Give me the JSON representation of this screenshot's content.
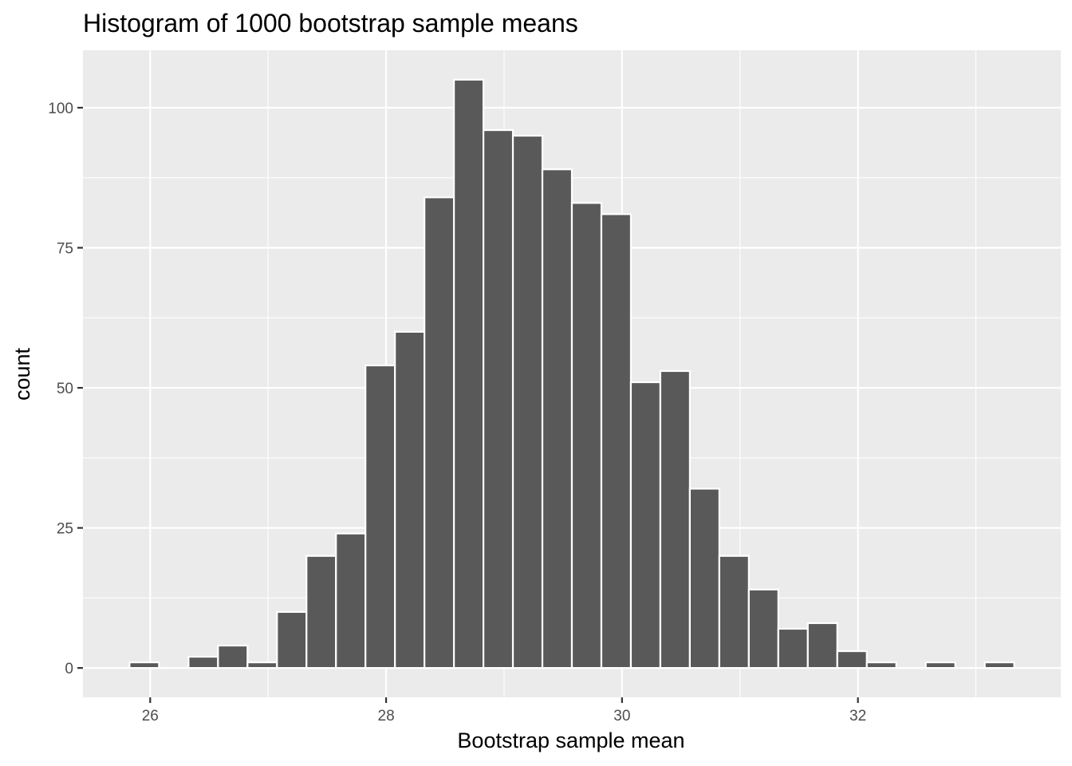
{
  "chart_data": {
    "type": "bar",
    "subtype": "histogram",
    "title": "Histogram of 1000 bootstrap sample means",
    "xlabel": "Bootstrap sample mean",
    "ylabel": "count",
    "bin_width": 0.25,
    "bins": [
      {
        "center": 25.95,
        "count": 1
      },
      {
        "center": 26.2,
        "count": 0
      },
      {
        "center": 26.45,
        "count": 2
      },
      {
        "center": 26.7,
        "count": 4
      },
      {
        "center": 26.95,
        "count": 1
      },
      {
        "center": 27.2,
        "count": 10
      },
      {
        "center": 27.45,
        "count": 20
      },
      {
        "center": 27.7,
        "count": 24
      },
      {
        "center": 27.95,
        "count": 54
      },
      {
        "center": 28.2,
        "count": 60
      },
      {
        "center": 28.45,
        "count": 84
      },
      {
        "center": 28.7,
        "count": 105
      },
      {
        "center": 28.95,
        "count": 96
      },
      {
        "center": 29.2,
        "count": 95
      },
      {
        "center": 29.45,
        "count": 89
      },
      {
        "center": 29.7,
        "count": 83
      },
      {
        "center": 29.95,
        "count": 81
      },
      {
        "center": 30.2,
        "count": 51
      },
      {
        "center": 30.45,
        "count": 53
      },
      {
        "center": 30.7,
        "count": 32
      },
      {
        "center": 30.95,
        "count": 20
      },
      {
        "center": 31.2,
        "count": 14
      },
      {
        "center": 31.45,
        "count": 7
      },
      {
        "center": 31.7,
        "count": 8
      },
      {
        "center": 31.95,
        "count": 3
      },
      {
        "center": 32.2,
        "count": 1
      },
      {
        "center": 32.45,
        "count": 0
      },
      {
        "center": 32.7,
        "count": 1
      },
      {
        "center": 32.95,
        "count": 0
      },
      {
        "center": 33.2,
        "count": 1
      }
    ],
    "xlim": [
      25.43,
      33.72
    ],
    "ylim": [
      -5.25,
      110.25
    ],
    "x_ticks": [
      26,
      28,
      30,
      32
    ],
    "x_tick_labels": [
      "26",
      "28",
      "30",
      "32"
    ],
    "x_minor_ticks": [
      27,
      29,
      31,
      33
    ],
    "y_ticks": [
      0,
      25,
      50,
      75,
      100
    ],
    "y_tick_labels": [
      "0",
      "25",
      "50",
      "75",
      "100"
    ],
    "y_minor_ticks": [
      12.5,
      37.5,
      62.5,
      87.5
    ],
    "grid": true,
    "legend": "none",
    "colors": {
      "panel_background": "#ebebeb",
      "grid": "#ffffff",
      "bar_fill": "#595959",
      "bar_outline": "#ffffff",
      "tick_text": "#4d4d4d"
    }
  }
}
